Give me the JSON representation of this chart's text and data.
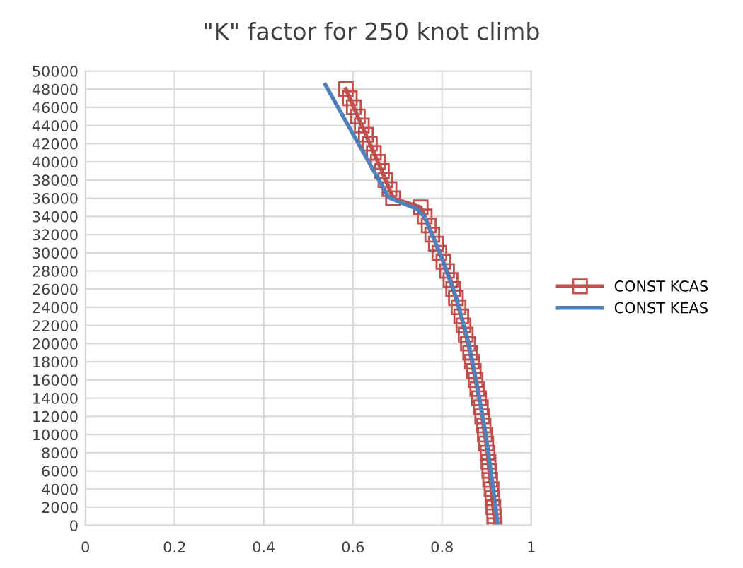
{
  "chart_data": {
    "type": "line",
    "title": "\"K\" factor for 250 knot climb",
    "xlim": [
      0,
      1
    ],
    "xticks": [
      0,
      {
        "value": 0.2,
        "label": "0.2"
      },
      {
        "value": 0.4,
        "label": "0.4"
      },
      {
        "value": 0.6,
        "label": "0.6"
      },
      {
        "value": 0.8,
        "label": "0.8"
      },
      1
    ],
    "ylim": [
      0,
      50000
    ],
    "yticks": [
      0,
      2000,
      4000,
      6000,
      8000,
      10000,
      12000,
      14000,
      16000,
      18000,
      20000,
      22000,
      24000,
      26000,
      28000,
      30000,
      32000,
      34000,
      36000,
      38000,
      40000,
      42000,
      44000,
      46000,
      48000,
      50000
    ],
    "grid": true,
    "legend": "right",
    "series": [
      {
        "name": "CONST KCAS",
        "color": "#c0504d",
        "marker": "square",
        "x": [
          0.918,
          0.917,
          0.915,
          0.913,
          0.911,
          0.908,
          0.906,
          0.904,
          0.902,
          0.899,
          0.896,
          0.893,
          0.89,
          0.887,
          0.883,
          0.879,
          0.875,
          0.871,
          0.867,
          0.863,
          0.858,
          0.853,
          0.848,
          0.843,
          0.837,
          0.831,
          0.825,
          0.819,
          0.811,
          0.803,
          0.794,
          0.786,
          0.778,
          0.77,
          0.761,
          0.752,
          0.69,
          0.682,
          0.673,
          0.665,
          0.656,
          0.647,
          0.638,
          0.629,
          0.62,
          0.611,
          0.602,
          0.593,
          0.584
        ],
        "values": [
          0,
          1000,
          2000,
          3000,
          4000,
          5000,
          6000,
          7000,
          8000,
          9000,
          10000,
          11000,
          12000,
          13000,
          14000,
          15000,
          16000,
          17000,
          18000,
          19000,
          20000,
          21000,
          22000,
          23000,
          24000,
          25000,
          26000,
          27000,
          28000,
          29000,
          30000,
          31000,
          32000,
          33000,
          34000,
          35000,
          36000,
          37000,
          38000,
          39000,
          40000,
          41000,
          42000,
          43000,
          44000,
          45000,
          46000,
          47000,
          48000
        ]
      },
      {
        "name": "CONST KEAS",
        "color": "#4f81bd",
        "x": [
          0.925,
          0.912,
          0.898,
          0.88,
          0.86,
          0.832,
          0.795,
          0.76,
          0.744,
          0.68,
          0.538
        ],
        "values": [
          0,
          5000,
          10000,
          15000,
          20000,
          25000,
          30000,
          34000,
          34800,
          36100,
          48500
        ]
      }
    ]
  }
}
